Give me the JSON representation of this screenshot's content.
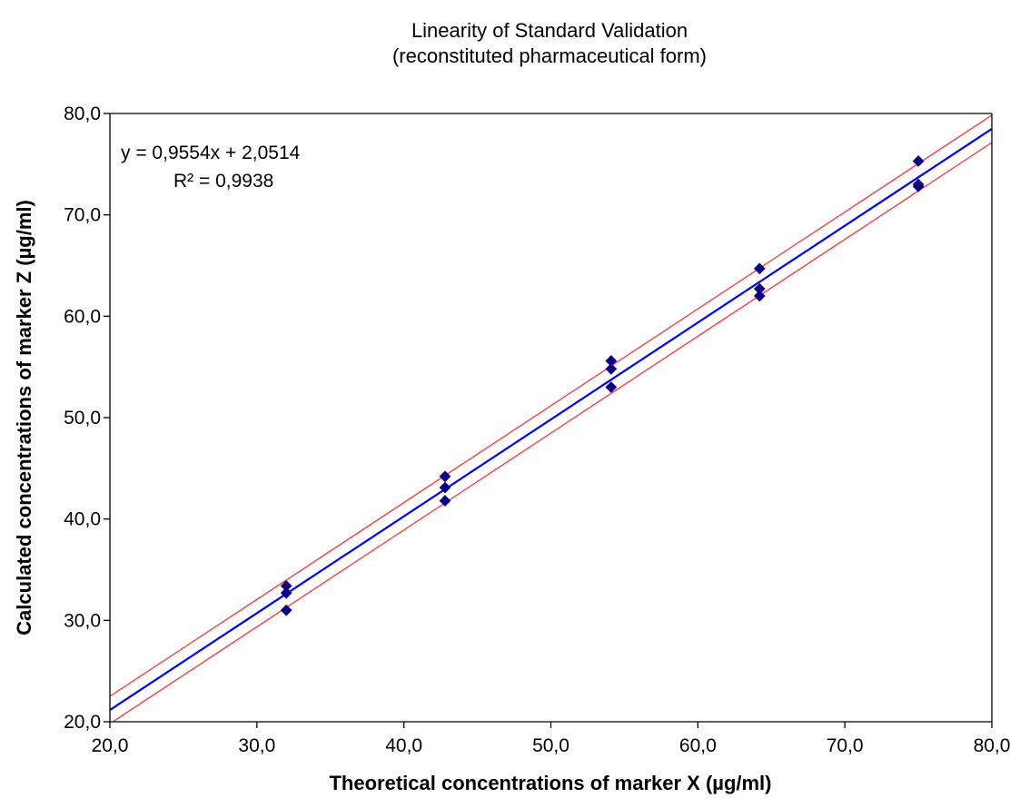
{
  "chart_data": {
    "type": "scatter",
    "title": "Linearity of Standard Validation",
    "subtitle": "(reconstituted pharmaceutical  form)",
    "xlabel": "Theoretical concentrations of marker X (µg/ml)",
    "ylabel": "Calculated concentrations of marker Z (µg/ml)",
    "xlim": [
      20,
      80
    ],
    "ylim": [
      20,
      80
    ],
    "x_ticks": [
      "20,0",
      "30,0",
      "40,0",
      "50,0",
      "60,0",
      "70,0",
      "80,0"
    ],
    "y_ticks": [
      "20,0",
      "30,0",
      "40,0",
      "50,0",
      "60,0",
      "70,0",
      "80,0"
    ],
    "grid": false,
    "series": [
      {
        "marker": "diamond",
        "color": "#00008B",
        "points": [
          [
            32.0,
            33.4
          ],
          [
            32.0,
            32.7
          ],
          [
            32.0,
            31.0
          ],
          [
            42.8,
            44.2
          ],
          [
            42.8,
            43.1
          ],
          [
            42.8,
            41.8
          ],
          [
            54.1,
            55.6
          ],
          [
            54.1,
            54.8
          ],
          [
            54.1,
            53.0
          ],
          [
            64.2,
            64.7
          ],
          [
            64.2,
            62.7
          ],
          [
            64.2,
            62.0
          ],
          [
            75.0,
            75.3
          ],
          [
            75.0,
            73.0
          ],
          [
            75.0,
            72.8
          ]
        ]
      }
    ],
    "regression": {
      "slope": 0.9554,
      "intercept": 2.0514,
      "color": "#0000FF"
    },
    "bounds": {
      "offset": 1.35,
      "color": "#FF3333"
    },
    "annotations": {
      "equation": "y = 0,9554x + 2,0514",
      "r_squared": "R² = 0,9938"
    }
  }
}
